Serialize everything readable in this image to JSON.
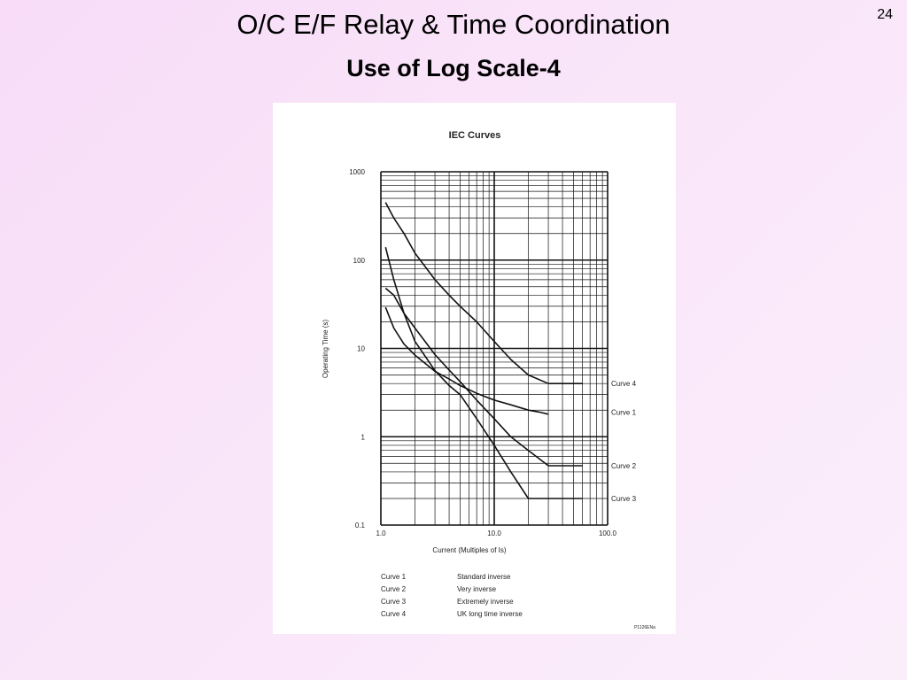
{
  "slide": {
    "title": "O/C E/F Relay & Time Coordination",
    "subtitle": "Use of Log Scale-4",
    "page_number": "24"
  },
  "chart_data": {
    "type": "line",
    "title": "IEC Curves",
    "xlabel": "Current (Multiples of Is)",
    "ylabel": "Operating Time (s)",
    "x_scale": "log",
    "y_scale": "log",
    "xlim": [
      1,
      100
    ],
    "ylim": [
      0.1,
      1000
    ],
    "x_ticks": [
      {
        "value": 1,
        "label": "1.0"
      },
      {
        "value": 10,
        "label": "10.0"
      },
      {
        "value": 100,
        "label": "100.0"
      }
    ],
    "y_ticks": [
      {
        "value": 1000,
        "label": "1000"
      },
      {
        "value": 100,
        "label": "100"
      },
      {
        "value": 10,
        "label": "10"
      },
      {
        "value": 1,
        "label": "1"
      },
      {
        "value": 0.1,
        "label": "0.1"
      }
    ],
    "grid": true,
    "series": [
      {
        "name": "Curve 1",
        "x": [
          1.1,
          1.3,
          1.6,
          2,
          3,
          4,
          5,
          7,
          10,
          14,
          20,
          25,
          30
        ],
        "y": [
          29.2,
          17.0,
          11.2,
          8.4,
          5.5,
          4.5,
          3.8,
          3.1,
          2.6,
          2.3,
          2.0,
          1.9,
          1.8
        ]
      },
      {
        "name": "Curve 2",
        "x": [
          1.1,
          1.3,
          1.6,
          2,
          3,
          4,
          5,
          7,
          10,
          14,
          20,
          30,
          50,
          60
        ],
        "y": [
          48,
          40,
          25,
          17,
          8.5,
          5.7,
          4.2,
          2.6,
          1.6,
          1.0,
          0.7,
          0.47,
          0.47,
          0.47
        ]
      },
      {
        "name": "Curve 3",
        "x": [
          1.1,
          1.3,
          1.6,
          2,
          3,
          4,
          5,
          7,
          10,
          14,
          20,
          30,
          50,
          60
        ],
        "y": [
          140,
          60,
          25,
          12,
          5.6,
          3.8,
          3.0,
          1.6,
          0.8,
          0.4,
          0.2,
          0.2,
          0.2,
          0.2
        ]
      },
      {
        "name": "Curve 4",
        "x": [
          1.1,
          1.3,
          1.6,
          2,
          3,
          4,
          5,
          7,
          10,
          14,
          20,
          30,
          50,
          60
        ],
        "y": [
          450,
          300,
          200,
          120,
          60,
          40,
          30,
          20,
          12,
          7.5,
          5,
          4,
          4,
          4
        ]
      }
    ],
    "curve_labels": [
      {
        "name": "Curve 4",
        "y": 4.0
      },
      {
        "name": "Curve 1",
        "y": 1.9
      },
      {
        "name": "Curve 2",
        "y": 0.47
      },
      {
        "name": "Curve 3",
        "y": 0.2
      }
    ],
    "legend": [
      {
        "curve": "Curve 1",
        "description": "Standard inverse"
      },
      {
        "curve": "Curve 2",
        "description": "Very inverse"
      },
      {
        "curve": "Curve 3",
        "description": "Extremely inverse"
      },
      {
        "curve": "Curve 4",
        "description": "UK long time inverse"
      }
    ],
    "legend_position": "bottom-left",
    "code": "P1126ENa"
  }
}
